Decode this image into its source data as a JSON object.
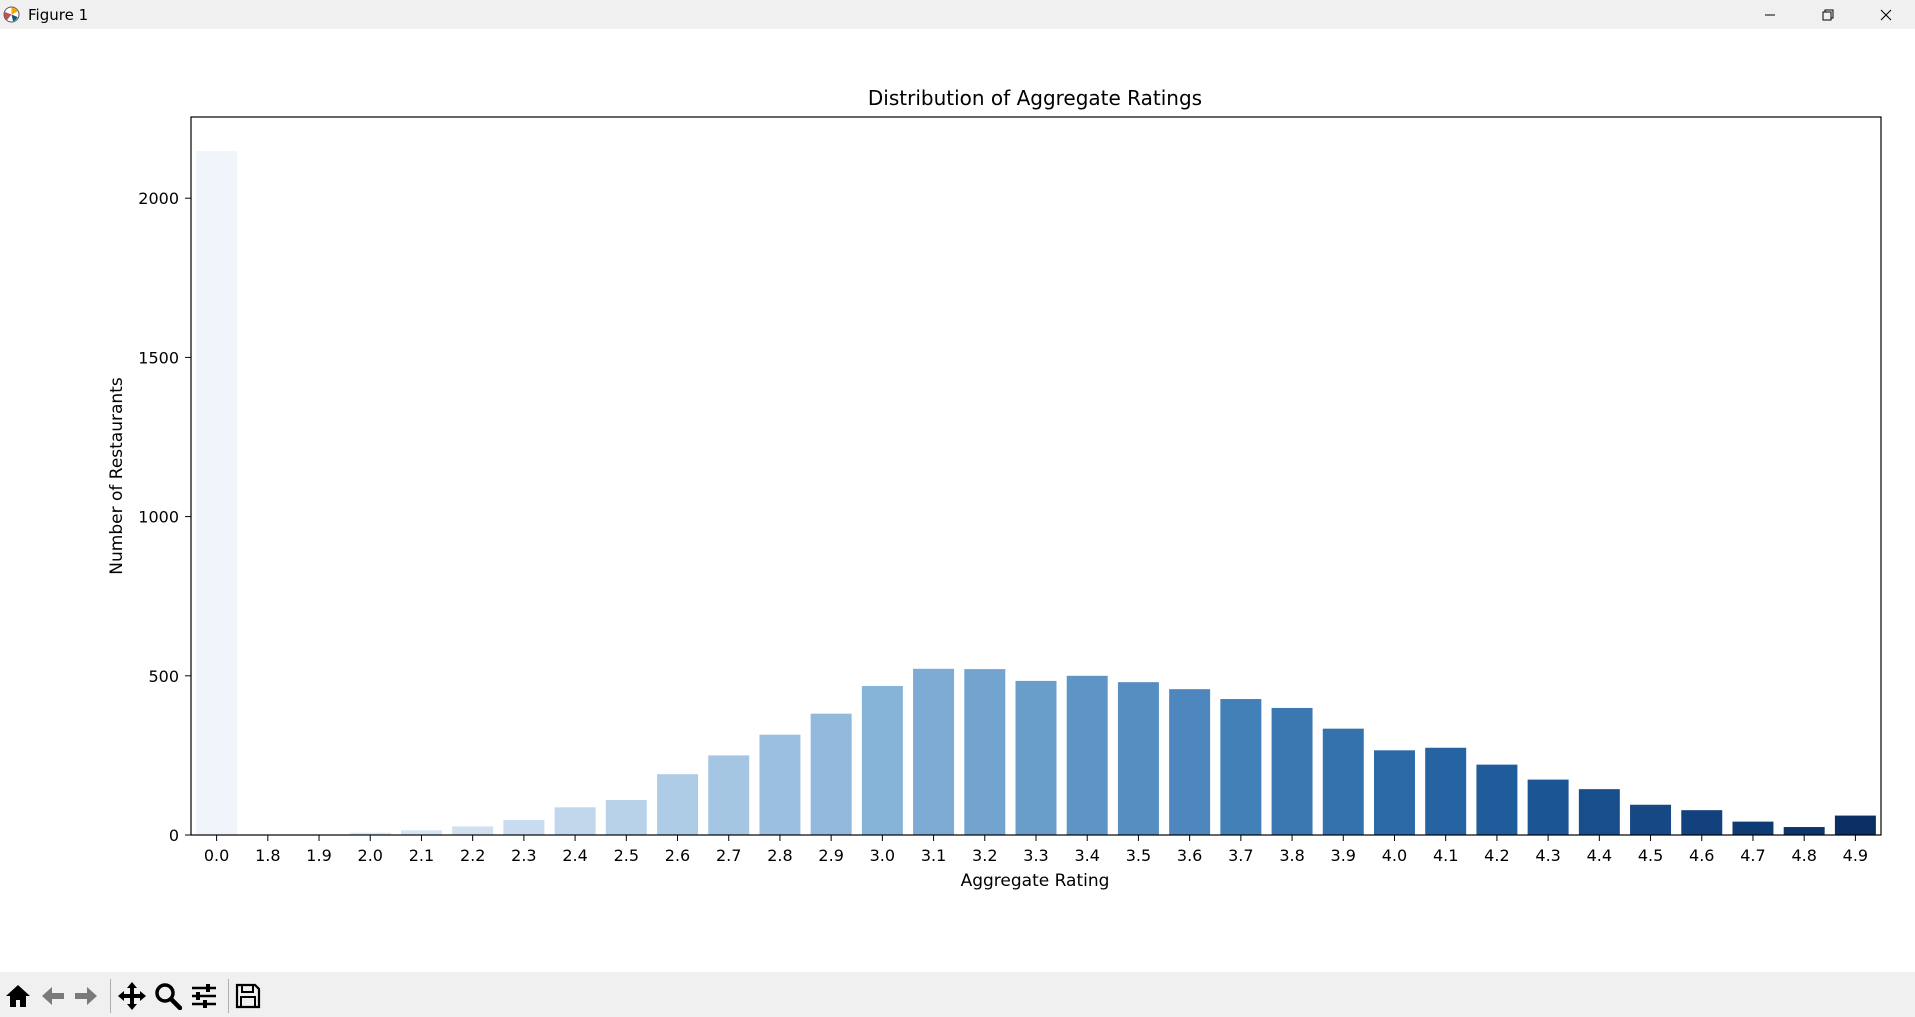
{
  "window": {
    "title": "Figure 1",
    "controls": [
      "minimize-icon",
      "restore-icon",
      "close-icon"
    ]
  },
  "toolbar": {
    "tools": [
      "home-icon",
      "back-arrow-icon",
      "forward-arrow-icon",
      "pan-icon",
      "zoom-icon",
      "configure-subplots-icon",
      "save-icon"
    ]
  },
  "chart_data": {
    "type": "bar",
    "title": "Distribution of Aggregate Ratings",
    "xlabel": "Aggregate Rating",
    "ylabel": "Number of Restaurants",
    "categories": [
      "0.0",
      "1.8",
      "1.9",
      "2.0",
      "2.1",
      "2.2",
      "2.3",
      "2.4",
      "2.5",
      "2.6",
      "2.7",
      "2.8",
      "2.9",
      "3.0",
      "3.1",
      "3.2",
      "3.3",
      "3.4",
      "3.5",
      "3.6",
      "3.7",
      "3.8",
      "3.9",
      "4.0",
      "4.1",
      "4.2",
      "4.3",
      "4.4",
      "4.5",
      "4.6",
      "4.7",
      "4.8",
      "4.9"
    ],
    "values": [
      2148,
      1,
      2,
      7,
      15,
      27,
      47,
      87,
      110,
      191,
      250,
      315,
      381,
      468,
      522,
      521,
      484,
      500,
      480,
      458,
      427,
      399,
      334,
      266,
      274,
      221,
      174,
      144,
      95,
      78,
      42,
      25,
      61
    ],
    "ylim": [
      0,
      2255
    ],
    "yticks": [
      0,
      500,
      1000,
      1500,
      2000
    ],
    "palette": "Blues",
    "colors": [
      "#f0f5fb",
      "#e8f0f8",
      "#e3edf7",
      "#dde9f5",
      "#d6e5f3",
      "#d0e0f1",
      "#c8dbef",
      "#c1d7ec",
      "#b8d2e9",
      "#aecce6",
      "#a4c6e3",
      "#9bc0df",
      "#91b9dc",
      "#86b3d8",
      "#7dabd3",
      "#73a4cf",
      "#699dca",
      "#5f95c6",
      "#568ec1",
      "#4d87bd",
      "#4480b8",
      "#3b78b1",
      "#3372ad",
      "#2b6aa7",
      "#2563a2",
      "#205c9b",
      "#1c5594",
      "#184e8c",
      "#154885",
      "#12417d",
      "#0f3b74",
      "#0c346c",
      "#0a2f63"
    ],
    "grid": false,
    "legend": "none"
  }
}
